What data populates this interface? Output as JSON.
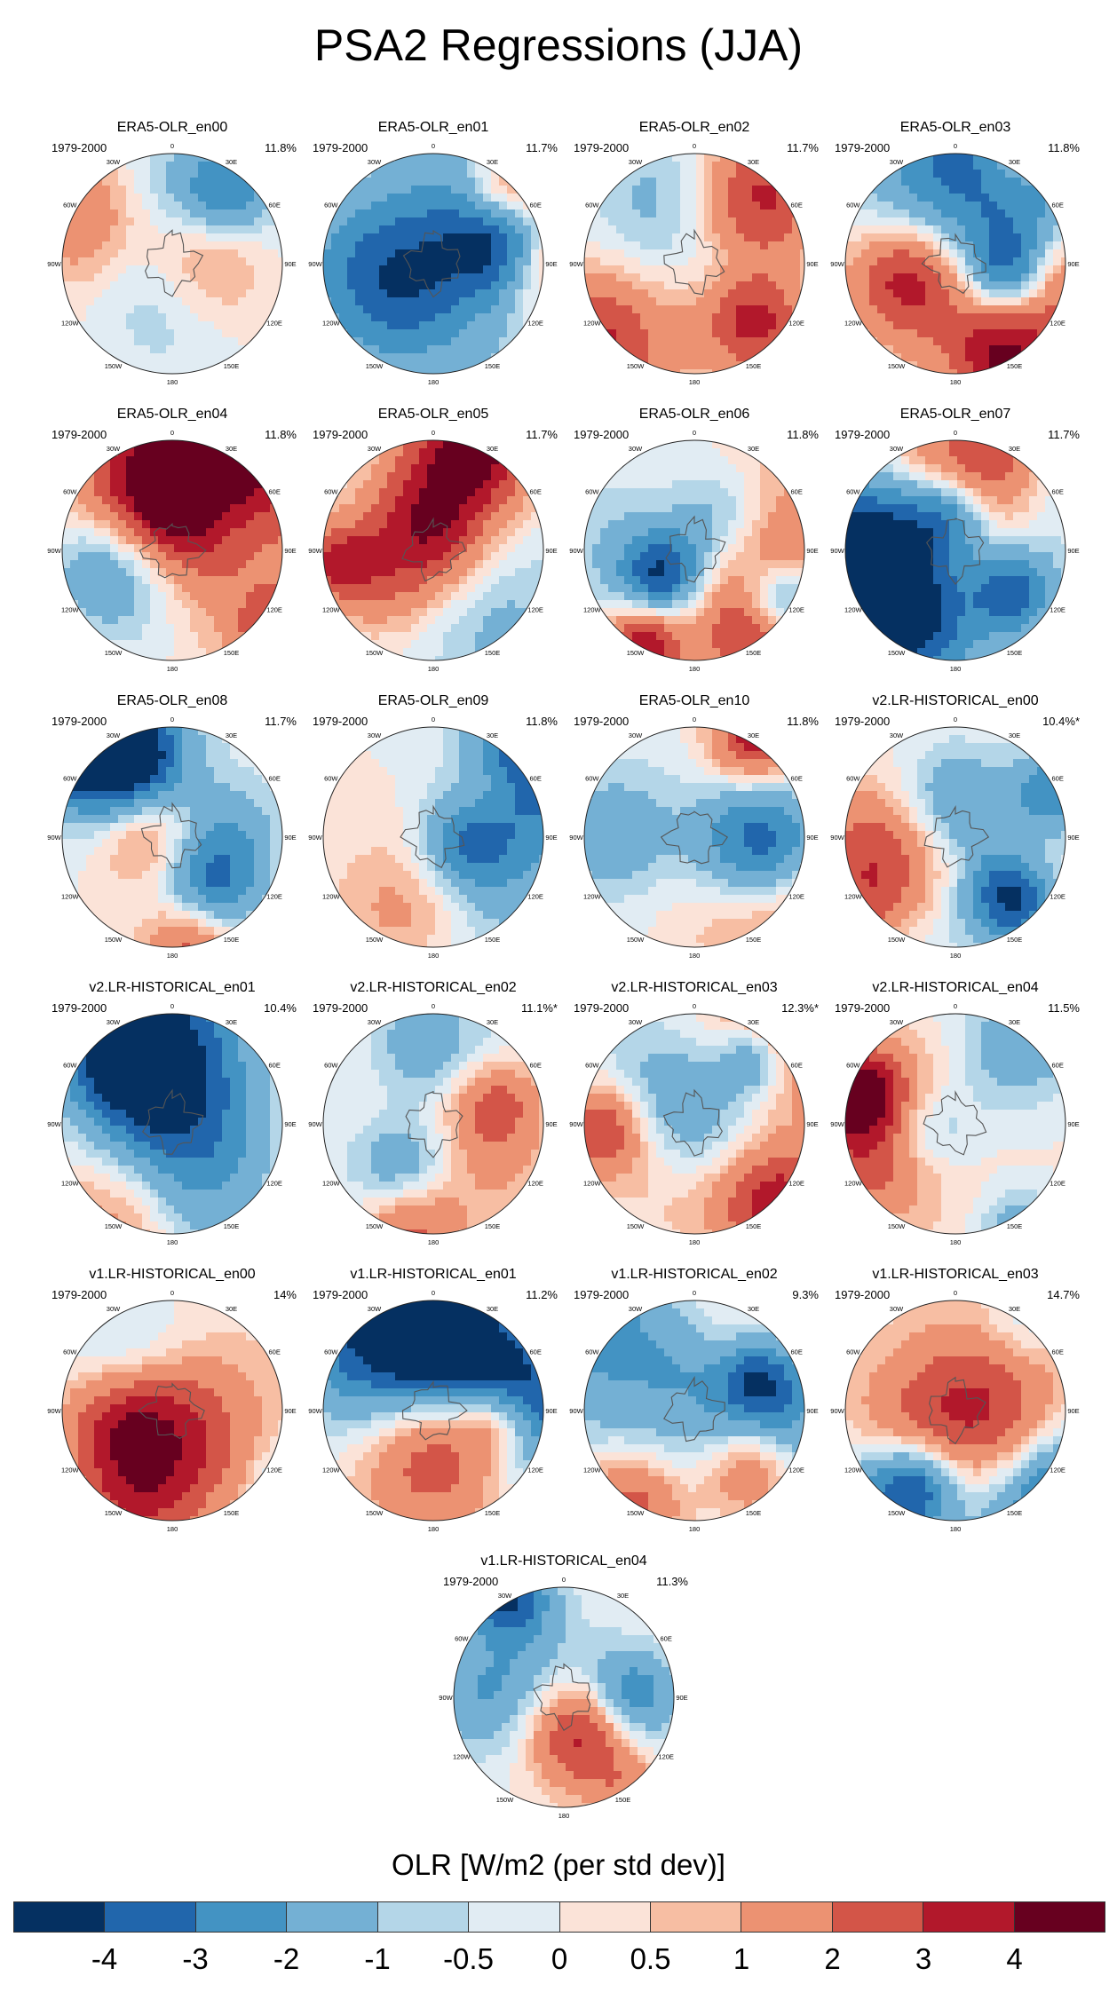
{
  "chart_data": {
    "type": "heatmap",
    "title": "PSA2 Regressions (JJA)",
    "colorbar": {
      "label": "OLR [W/m2 (per std dev)]",
      "levels": [
        "-4",
        "-3",
        "-2",
        "-1",
        "-0.5",
        "0",
        "0.5",
        "1",
        "2",
        "3",
        "4"
      ],
      "colors": [
        "#053061",
        "#2166ac",
        "#4393c3",
        "#74b0d4",
        "#b4d6e8",
        "#e1ecf3",
        "#fbe3d8",
        "#f7bea3",
        "#ec9272",
        "#d35548",
        "#b2182b",
        "#67001f"
      ]
    },
    "map_labels": {
      "lon_0": "0",
      "lon_30e": "30E",
      "lon_60e": "60E",
      "lon_90e": "90E",
      "lon_120e": "120E",
      "lon_150e": "150E",
      "lon_180": "180",
      "lon_150w": "150W",
      "lon_120w": "120W",
      "lon_90w": "90W",
      "lon_60w": "60W",
      "lon_30w": "30W"
    },
    "panels": [
      {
        "title": "ERA5-OLR_en00",
        "period": "1979-2000",
        "variance": "11.8%"
      },
      {
        "title": "ERA5-OLR_en01",
        "period": "1979-2000",
        "variance": "11.7%"
      },
      {
        "title": "ERA5-OLR_en02",
        "period": "1979-2000",
        "variance": "11.7%"
      },
      {
        "title": "ERA5-OLR_en03",
        "period": "1979-2000",
        "variance": "11.8%"
      },
      {
        "title": "ERA5-OLR_en04",
        "period": "1979-2000",
        "variance": "11.8%"
      },
      {
        "title": "ERA5-OLR_en05",
        "period": "1979-2000",
        "variance": "11.7%"
      },
      {
        "title": "ERA5-OLR_en06",
        "period": "1979-2000",
        "variance": "11.8%"
      },
      {
        "title": "ERA5-OLR_en07",
        "period": "1979-2000",
        "variance": "11.7%"
      },
      {
        "title": "ERA5-OLR_en08",
        "period": "1979-2000",
        "variance": "11.7%"
      },
      {
        "title": "ERA5-OLR_en09",
        "period": "1979-2000",
        "variance": "11.8%"
      },
      {
        "title": "ERA5-OLR_en10",
        "period": "1979-2000",
        "variance": "11.8%"
      },
      {
        "title": "v2.LR-HISTORICAL_en00",
        "period": "1979-2000",
        "variance": "10.4%*"
      },
      {
        "title": "v2.LR-HISTORICAL_en01",
        "period": "1979-2000",
        "variance": "10.4%"
      },
      {
        "title": "v2.LR-HISTORICAL_en02",
        "period": "1979-2000",
        "variance": "11.1%*"
      },
      {
        "title": "v2.LR-HISTORICAL_en03",
        "period": "1979-2000",
        "variance": "12.3%*"
      },
      {
        "title": "v2.LR-HISTORICAL_en04",
        "period": "1979-2000",
        "variance": "11.5%"
      },
      {
        "title": "v1.LR-HISTORICAL_en00",
        "period": "1979-2000",
        "variance": "14%"
      },
      {
        "title": "v1.LR-HISTORICAL_en01",
        "period": "1979-2000",
        "variance": "11.2%"
      },
      {
        "title": "v1.LR-HISTORICAL_en02",
        "period": "1979-2000",
        "variance": "9.3%"
      },
      {
        "title": "v1.LR-HISTORICAL_en03",
        "period": "1979-2000",
        "variance": "14.7%"
      },
      {
        "title": "v1.LR-HISTORICAL_en04",
        "period": "1979-2000",
        "variance": "11.3%"
      }
    ]
  }
}
